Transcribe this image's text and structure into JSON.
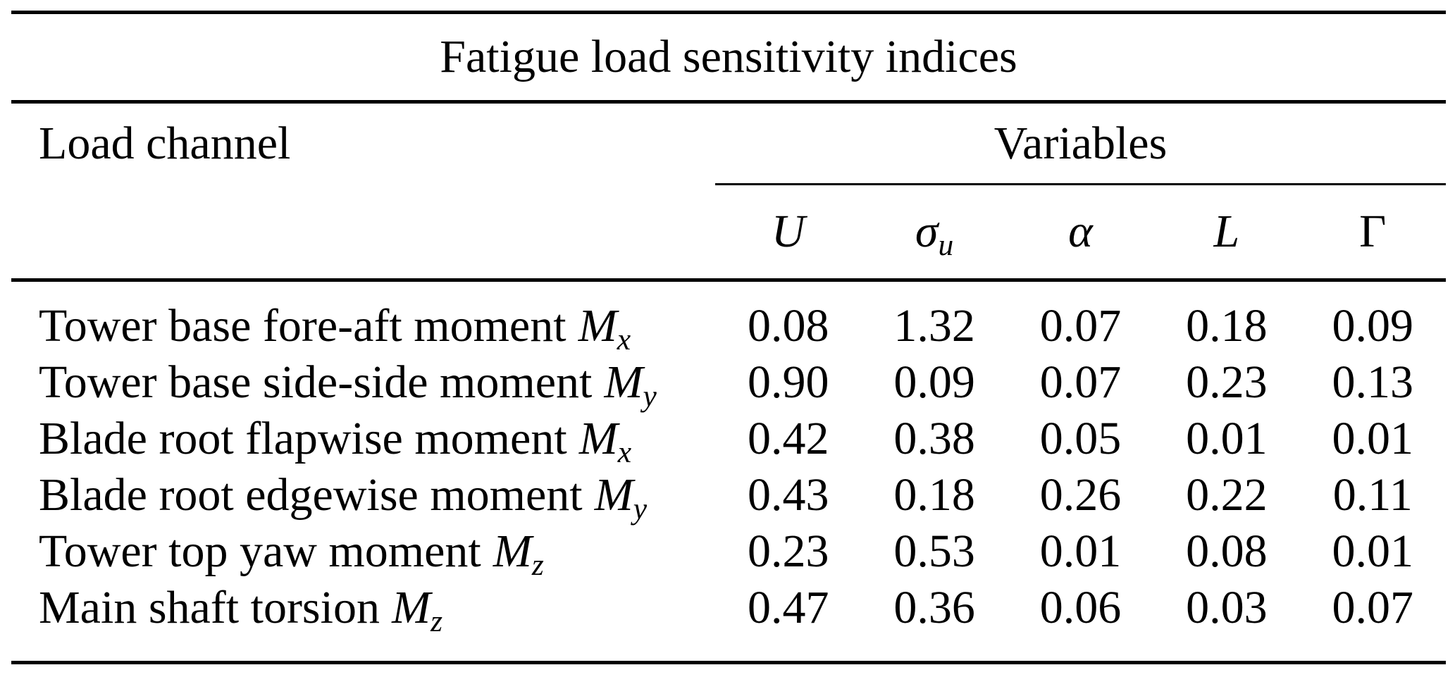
{
  "table": {
    "title": "Fatigue load sensitivity indices",
    "load_channel_header": "Load channel",
    "variables_header": "Variables",
    "columns": [
      {
        "main": "U",
        "sub": ""
      },
      {
        "main": "σ",
        "sub": "u"
      },
      {
        "main": "α",
        "sub": ""
      },
      {
        "main": "L",
        "sub": ""
      },
      {
        "main": "Γ",
        "sub": ""
      }
    ],
    "rows": [
      {
        "label": "Tower base fore-aft moment",
        "symbol": "M",
        "symbol_sub": "x",
        "values": [
          "0.08",
          "1.32",
          "0.07",
          "0.18",
          "0.09"
        ]
      },
      {
        "label": "Tower base side-side moment",
        "symbol": "M",
        "symbol_sub": "y",
        "values": [
          "0.90",
          "0.09",
          "0.07",
          "0.23",
          "0.13"
        ]
      },
      {
        "label": "Blade root flapwise moment",
        "symbol": "M",
        "symbol_sub": "x",
        "values": [
          "0.42",
          "0.38",
          "0.05",
          "0.01",
          "0.01"
        ]
      },
      {
        "label": "Blade root edgewise moment",
        "symbol": "M",
        "symbol_sub": "y",
        "values": [
          "0.43",
          "0.18",
          "0.26",
          "0.22",
          "0.11"
        ]
      },
      {
        "label": "Tower top yaw moment",
        "symbol": "M",
        "symbol_sub": "z",
        "values": [
          "0.23",
          "0.53",
          "0.01",
          "0.08",
          "0.01"
        ]
      },
      {
        "label": "Main shaft torsion",
        "symbol": "M",
        "symbol_sub": "z",
        "values": [
          "0.47",
          "0.36",
          "0.06",
          "0.03",
          "0.07"
        ]
      }
    ],
    "colors": {
      "text": "#000000",
      "background": "#ffffff",
      "rule": "#000000"
    }
  },
  "chart_data": {
    "type": "table",
    "title": "Fatigue load sensitivity indices",
    "row_header": "Load channel",
    "column_group": "Variables",
    "columns": [
      "U",
      "σ_u",
      "α",
      "L",
      "Γ"
    ],
    "rows": [
      {
        "label": "Tower base fore-aft moment M_x",
        "values": [
          0.08,
          1.32,
          0.07,
          0.18,
          0.09
        ]
      },
      {
        "label": "Tower base side-side moment M_y",
        "values": [
          0.9,
          0.09,
          0.07,
          0.23,
          0.13
        ]
      },
      {
        "label": "Blade root flapwise moment M_x",
        "values": [
          0.42,
          0.38,
          0.05,
          0.01,
          0.01
        ]
      },
      {
        "label": "Blade root edgewise moment M_y",
        "values": [
          0.43,
          0.18,
          0.26,
          0.22,
          0.11
        ]
      },
      {
        "label": "Tower top yaw moment M_z",
        "values": [
          0.23,
          0.53,
          0.01,
          0.08,
          0.01
        ]
      },
      {
        "label": "Main shaft torsion M_z",
        "values": [
          0.47,
          0.36,
          0.06,
          0.03,
          0.07
        ]
      }
    ]
  }
}
